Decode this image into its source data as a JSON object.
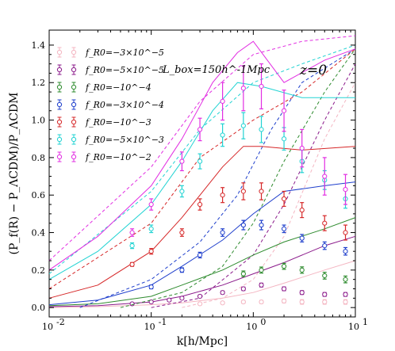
{
  "chart_data": {
    "type": "line",
    "x_scale": "log",
    "xlim": [
      0.01,
      10
    ],
    "ylim": [
      -0.05,
      1.48
    ],
    "x_ticks": [
      0.01,
      0.1,
      1,
      10
    ],
    "x_tick_labels": [
      "10",
      "10",
      "10",
      "10"
    ],
    "x_tick_exponents": [
      "-2",
      "-1",
      "0",
      "1"
    ],
    "y_ticks": [
      0.0,
      0.2,
      0.4,
      0.6,
      0.8,
      1.0,
      1.2,
      1.4
    ],
    "y_tick_labels": [
      "0.0",
      "0.2",
      "0.4",
      "0.6",
      "0.8",
      "1.0",
      "1.2",
      "1.4"
    ],
    "xlabel": "k[h/Mpc]",
    "ylabel": "(P_f(R) − P_ΛCDM)/P_ΛCDM",
    "annotation_box": "L_box=150h^-1Mpc",
    "annotation_z": "z=0",
    "grid": false,
    "legend_position": "top-left",
    "series": [
      {
        "name": "f_R0=−3×10^−5",
        "color": "#f4b6c2",
        "solid": [
          [
            0.01,
            0.0
          ],
          [
            0.03,
            0.005
          ],
          [
            0.1,
            0.015
          ],
          [
            0.2,
            0.025
          ],
          [
            0.5,
            0.05
          ],
          [
            1,
            0.08
          ],
          [
            2,
            0.13
          ],
          [
            5,
            0.2
          ],
          [
            10,
            0.25
          ]
        ],
        "dashed": [
          [
            0.2,
            0.0
          ],
          [
            0.5,
            0.05
          ],
          [
            1,
            0.15
          ],
          [
            2,
            0.38
          ],
          [
            5,
            0.9
          ],
          [
            10,
            1.2
          ]
        ],
        "points": [
          [
            0.3,
            0.02,
            0.005
          ],
          [
            0.5,
            0.025,
            0.006
          ],
          [
            0.8,
            0.03,
            0.007
          ],
          [
            1.2,
            0.03,
            0.008
          ],
          [
            2.0,
            0.035,
            0.01
          ],
          [
            3.0,
            0.03,
            0.012
          ],
          [
            5.0,
            0.03,
            0.012
          ],
          [
            8.0,
            0.03,
            0.012
          ]
        ]
      },
      {
        "name": "f_R0=−5×10^−5",
        "color": "#8b1a8b",
        "solid": [
          [
            0.01,
            0.005
          ],
          [
            0.03,
            0.01
          ],
          [
            0.1,
            0.03
          ],
          [
            0.2,
            0.06
          ],
          [
            0.5,
            0.12
          ],
          [
            1,
            0.18
          ],
          [
            2,
            0.24
          ],
          [
            5,
            0.33
          ],
          [
            10,
            0.38
          ]
        ],
        "dashed": [
          [
            0.1,
            0.0
          ],
          [
            0.3,
            0.05
          ],
          [
            1,
            0.28
          ],
          [
            2,
            0.55
          ],
          [
            5,
            1.0
          ],
          [
            10,
            1.3
          ]
        ],
        "points": [
          [
            0.065,
            0.02,
            0.005
          ],
          [
            0.1,
            0.03,
            0.005
          ],
          [
            0.15,
            0.04,
            0.006
          ],
          [
            0.2,
            0.05,
            0.006
          ],
          [
            0.3,
            0.06,
            0.007
          ],
          [
            0.5,
            0.08,
            0.008
          ],
          [
            0.8,
            0.1,
            0.009
          ],
          [
            1.2,
            0.12,
            0.01
          ],
          [
            2.0,
            0.1,
            0.01
          ],
          [
            3.0,
            0.08,
            0.01
          ],
          [
            5.0,
            0.07,
            0.01
          ],
          [
            8.0,
            0.07,
            0.01
          ]
        ]
      },
      {
        "name": "f_R0=−10^−4",
        "color": "#2e8b2e",
        "solid": [
          [
            0.01,
            0.01
          ],
          [
            0.03,
            0.02
          ],
          [
            0.1,
            0.06
          ],
          [
            0.2,
            0.12
          ],
          [
            0.5,
            0.2
          ],
          [
            1,
            0.28
          ],
          [
            2,
            0.35
          ],
          [
            5,
            0.42
          ],
          [
            10,
            0.48
          ]
        ],
        "dashed": [
          [
            0.05,
            0.0
          ],
          [
            0.2,
            0.08
          ],
          [
            0.5,
            0.22
          ],
          [
            1,
            0.45
          ],
          [
            2,
            0.78
          ],
          [
            5,
            1.15
          ],
          [
            10,
            1.38
          ]
        ],
        "points": [
          [
            0.8,
            0.18,
            0.015
          ],
          [
            1.2,
            0.2,
            0.016
          ],
          [
            2.0,
            0.22,
            0.016
          ],
          [
            3.0,
            0.2,
            0.017
          ],
          [
            5.0,
            0.17,
            0.018
          ],
          [
            8.0,
            0.15,
            0.018
          ]
        ]
      },
      {
        "name": "f_R0=−3×10^−4",
        "color": "#1f3fcc",
        "solid": [
          [
            0.01,
            0.015
          ],
          [
            0.03,
            0.04
          ],
          [
            0.1,
            0.12
          ],
          [
            0.2,
            0.22
          ],
          [
            0.5,
            0.36
          ],
          [
            1,
            0.5
          ],
          [
            2,
            0.62
          ],
          [
            5,
            0.65
          ],
          [
            10,
            0.67
          ]
        ],
        "dashed": [
          [
            0.02,
            0.0
          ],
          [
            0.1,
            0.15
          ],
          [
            0.3,
            0.35
          ],
          [
            0.7,
            0.6
          ],
          [
            1.5,
            0.95
          ],
          [
            3,
            1.2
          ],
          [
            10,
            1.38
          ]
        ],
        "points": [
          [
            0.1,
            0.11,
            0.01
          ],
          [
            0.2,
            0.2,
            0.012
          ],
          [
            0.3,
            0.28,
            0.015
          ],
          [
            0.5,
            0.4,
            0.02
          ],
          [
            0.8,
            0.44,
            0.025
          ],
          [
            1.2,
            0.44,
            0.025
          ],
          [
            2.0,
            0.42,
            0.02
          ],
          [
            3.0,
            0.37,
            0.02
          ],
          [
            5.0,
            0.33,
            0.02
          ],
          [
            8.0,
            0.3,
            0.02
          ]
        ]
      },
      {
        "name": "f_R0=−10^−3",
        "color": "#d62728",
        "solid": [
          [
            0.01,
            0.05
          ],
          [
            0.03,
            0.12
          ],
          [
            0.1,
            0.3
          ],
          [
            0.2,
            0.48
          ],
          [
            0.5,
            0.75
          ],
          [
            0.8,
            0.86
          ],
          [
            1.2,
            0.86
          ],
          [
            3,
            0.84
          ],
          [
            10,
            0.86
          ]
        ],
        "dashed": [
          [
            0.01,
            0.1
          ],
          [
            0.1,
            0.45
          ],
          [
            0.3,
            0.8
          ],
          [
            1,
            1.0
          ],
          [
            3,
            1.15
          ],
          [
            10,
            1.38
          ]
        ],
        "points": [
          [
            0.065,
            0.23,
            0.01
          ],
          [
            0.1,
            0.3,
            0.015
          ],
          [
            0.2,
            0.4,
            0.02
          ],
          [
            0.3,
            0.55,
            0.03
          ],
          [
            0.5,
            0.6,
            0.04
          ],
          [
            0.8,
            0.62,
            0.045
          ],
          [
            1.2,
            0.62,
            0.045
          ],
          [
            2.0,
            0.58,
            0.04
          ],
          [
            3.0,
            0.52,
            0.04
          ],
          [
            5.0,
            0.45,
            0.04
          ],
          [
            8.0,
            0.4,
            0.04
          ]
        ]
      },
      {
        "name": "f_R0=−5×10^−3",
        "color": "#22d3d3",
        "solid": [
          [
            0.01,
            0.15
          ],
          [
            0.03,
            0.3
          ],
          [
            0.1,
            0.55
          ],
          [
            0.2,
            0.78
          ],
          [
            0.4,
            1.05
          ],
          [
            0.7,
            1.2
          ],
          [
            1.2,
            1.18
          ],
          [
            3,
            1.12
          ],
          [
            10,
            1.12
          ]
        ],
        "dashed": [
          [
            0.01,
            0.18
          ],
          [
            0.1,
            0.62
          ],
          [
            0.3,
            0.95
          ],
          [
            1,
            1.2
          ],
          [
            3,
            1.3
          ],
          [
            10,
            1.4
          ]
        ],
        "points": [
          [
            0.065,
            0.33,
            0.015
          ],
          [
            0.1,
            0.42,
            0.02
          ],
          [
            0.2,
            0.62,
            0.03
          ],
          [
            0.3,
            0.78,
            0.04
          ],
          [
            0.5,
            0.92,
            0.06
          ],
          [
            0.8,
            0.97,
            0.07
          ],
          [
            1.2,
            0.95,
            0.07
          ],
          [
            2.0,
            0.9,
            0.06
          ],
          [
            3.0,
            0.78,
            0.06
          ],
          [
            5.0,
            0.68,
            0.05
          ],
          [
            8.0,
            0.58,
            0.05
          ]
        ]
      },
      {
        "name": "f_R0=−10^−2",
        "color": "#e22ee2",
        "solid": [
          [
            0.01,
            0.2
          ],
          [
            0.03,
            0.38
          ],
          [
            0.1,
            0.65
          ],
          [
            0.2,
            0.9
          ],
          [
            0.4,
            1.2
          ],
          [
            0.7,
            1.36
          ],
          [
            1.0,
            1.42
          ],
          [
            2,
            1.2
          ],
          [
            5,
            1.32
          ],
          [
            10,
            1.38
          ]
        ],
        "dashed": [
          [
            0.01,
            0.25
          ],
          [
            0.1,
            0.75
          ],
          [
            0.3,
            1.1
          ],
          [
            1,
            1.35
          ],
          [
            3,
            1.42
          ],
          [
            10,
            1.45
          ]
        ],
        "points": [
          [
            0.065,
            0.4,
            0.02
          ],
          [
            0.1,
            0.55,
            0.03
          ],
          [
            0.2,
            0.78,
            0.05
          ],
          [
            0.3,
            0.95,
            0.06
          ],
          [
            0.5,
            1.1,
            0.1
          ],
          [
            0.8,
            1.17,
            0.12
          ],
          [
            1.2,
            1.18,
            0.12
          ],
          [
            2.0,
            1.05,
            0.11
          ],
          [
            3.0,
            0.85,
            0.1
          ],
          [
            5.0,
            0.7,
            0.1
          ],
          [
            8.0,
            0.63,
            0.08
          ]
        ]
      }
    ]
  }
}
